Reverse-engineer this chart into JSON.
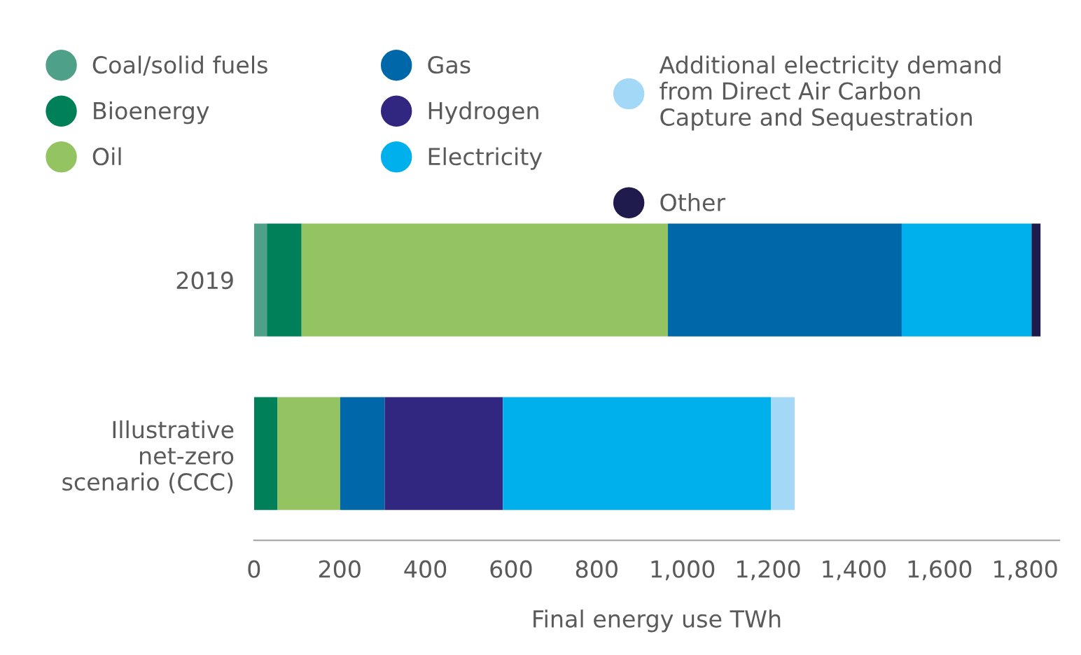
{
  "chart_data": {
    "type": "bar",
    "orientation": "horizontal",
    "stacked": true,
    "xlabel": "Final energy use TWh",
    "categories": [
      "2019",
      "Illustrative\nnet-zero\nscenario (CCC)"
    ],
    "series": [
      {
        "name": "Coal/solid fuels",
        "color": "#4fa088",
        "values": [
          30,
          null
        ]
      },
      {
        "name": "Bioenergy",
        "color": "#008059",
        "values": [
          81,
          55
        ]
      },
      {
        "name": "Oil",
        "color": "#94c462",
        "values": [
          855,
          146
        ]
      },
      {
        "name": "Gas",
        "color": "#0067a8",
        "values": [
          546,
          104
        ]
      },
      {
        "name": "Hydrogen",
        "color": "#312680",
        "values": [
          null,
          276
        ]
      },
      {
        "name": "Electricity",
        "color": "#00b0ec",
        "values": [
          303,
          626
        ]
      },
      {
        "name": "Additional electricity demand\nfrom Direct Air Carbon\nCapture and Sequestration",
        "color": "#a3d9f7",
        "values": [
          null,
          55
        ]
      },
      {
        "name": "Other",
        "color": "#1f1b4d",
        "values": [
          21,
          null
        ]
      }
    ],
    "xlim": [
      0,
      1880
    ],
    "xticks": [
      0,
      200,
      400,
      600,
      800,
      {
        "value": 1000,
        "label": "1,000"
      },
      {
        "value": 1200,
        "label": "1,200"
      },
      {
        "value": 1400,
        "label": "1,400"
      },
      {
        "value": 1600,
        "label": "1,600"
      },
      {
        "value": 1800,
        "label": "1,800"
      }
    ],
    "grid": false,
    "legend": "top"
  }
}
